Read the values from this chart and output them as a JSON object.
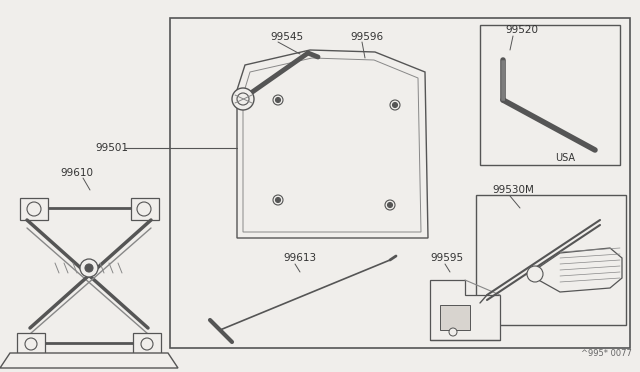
{
  "bg_color": "#f0eeeb",
  "border_color": "#555555",
  "line_color": "#555555",
  "light_line": "#888888",
  "label_color": "#333333",
  "watermark": "^995* 0077"
}
